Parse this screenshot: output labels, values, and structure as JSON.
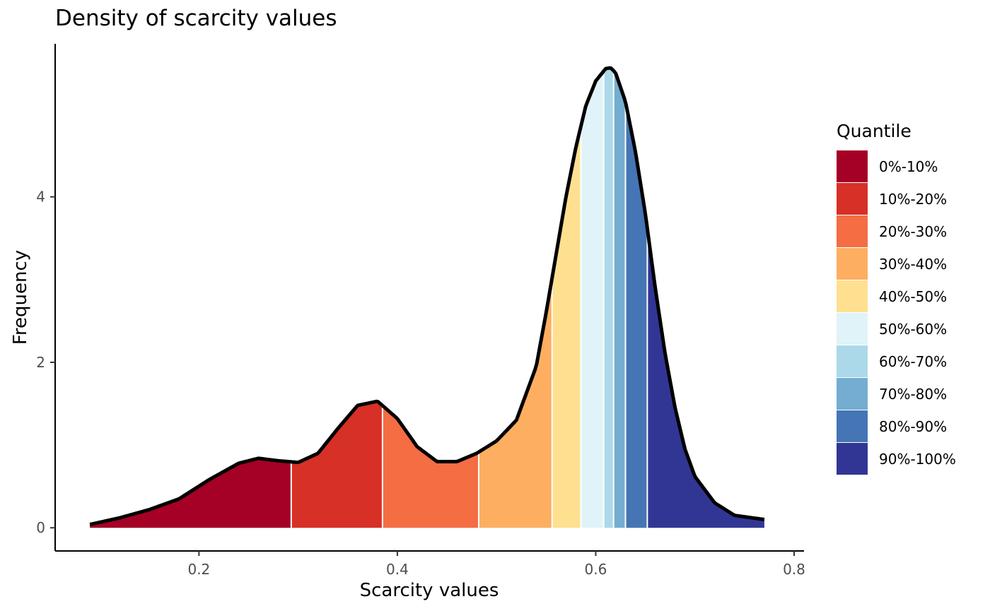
{
  "chart_data": {
    "type": "area",
    "title": "Density of scarcity values",
    "xlabel": "Scarcity values",
    "ylabel": "Frequency",
    "xlim": [
      0.055,
      0.81
    ],
    "ylim": [
      -0.28,
      5.85
    ],
    "x_ticks": [
      0.2,
      0.4,
      0.6,
      0.8
    ],
    "x_tick_labels": [
      "0.2",
      "0.4",
      "0.6",
      "0.8"
    ],
    "y_ticks": [
      0,
      2,
      4
    ],
    "y_tick_labels": [
      "0",
      "2",
      "4"
    ],
    "grid": false,
    "legend": {
      "title": "Quantile",
      "position": "right",
      "entries": [
        {
          "label": "0%-10%",
          "color": "#a50026"
        },
        {
          "label": "10%-20%",
          "color": "#d73027"
        },
        {
          "label": "20%-30%",
          "color": "#f46d43"
        },
        {
          "label": "30%-40%",
          "color": "#fdae61"
        },
        {
          "label": "40%-50%",
          "color": "#fee090"
        },
        {
          "label": "50%-60%",
          "color": "#e0f3f8"
        },
        {
          "label": "60%-70%",
          "color": "#abd9e9"
        },
        {
          "label": "70%-80%",
          "color": "#74add1"
        },
        {
          "label": "80%-90%",
          "color": "#4575b4"
        },
        {
          "label": "90%-100%",
          "color": "#313695"
        }
      ]
    },
    "quantile_breaks": [
      0.09,
      0.293,
      0.385,
      0.482,
      0.556,
      0.585,
      0.608,
      0.618,
      0.63,
      0.652,
      0.77
    ],
    "density_x": [
      0.09,
      0.12,
      0.15,
      0.18,
      0.21,
      0.24,
      0.26,
      0.28,
      0.3,
      0.32,
      0.34,
      0.36,
      0.38,
      0.4,
      0.42,
      0.44,
      0.46,
      0.48,
      0.5,
      0.52,
      0.54,
      0.55,
      0.56,
      0.57,
      0.58,
      0.59,
      0.6,
      0.61,
      0.615,
      0.62,
      0.63,
      0.64,
      0.65,
      0.66,
      0.67,
      0.68,
      0.69,
      0.7,
      0.72,
      0.74,
      0.77
    ],
    "density_y": [
      0.04,
      0.12,
      0.22,
      0.35,
      0.58,
      0.78,
      0.84,
      0.81,
      0.79,
      0.9,
      1.2,
      1.48,
      1.53,
      1.32,
      0.98,
      0.8,
      0.8,
      0.9,
      1.05,
      1.3,
      1.95,
      2.6,
      3.3,
      4.0,
      4.6,
      5.1,
      5.4,
      5.55,
      5.56,
      5.5,
      5.15,
      4.55,
      3.8,
      2.9,
      2.1,
      1.45,
      0.95,
      0.62,
      0.3,
      0.15,
      0.1
    ]
  }
}
